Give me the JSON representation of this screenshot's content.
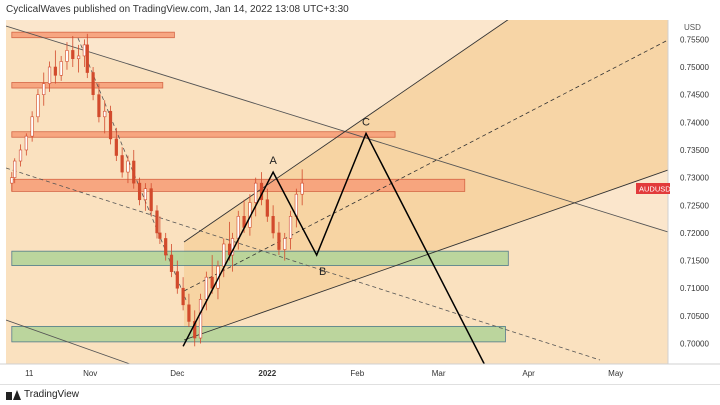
{
  "header": {
    "publisher_line": "CyclicalWaves published on TradingView.com, Jan 14, 2022 13:08 UTC+3:30"
  },
  "footer": {
    "logo_text": "TradingView"
  },
  "colors": {
    "orange_zone": "#f7a07a",
    "green_zone": "#b5d49a",
    "channel_fill": "#f6d3a2",
    "background": "#fbe6cc",
    "candle": "#d24a2c",
    "path": "#000000",
    "price_tag": "#e23b3b"
  },
  "chart_data": {
    "type": "candlestick",
    "symbol": "AUDUSD",
    "currency": "USD",
    "y_ticks": [
      "0.75500",
      "0.75000",
      "0.74500",
      "0.74000",
      "0.73500",
      "0.73000",
      "0.72500",
      "0.72000",
      "0.71500",
      "0.71000",
      "0.70500",
      "0.70000"
    ],
    "x_ticks": [
      "11",
      "Nov",
      "Dec",
      "2022",
      "Feb",
      "Mar",
      "Apr",
      "May"
    ],
    "ylim": [
      0.6963,
      0.7585
    ],
    "current_price_label": "AUDUSD",
    "wave_labels": [
      "A",
      "B",
      "C"
    ],
    "wave_points": [
      {
        "label": "",
        "date": "2021-12-03",
        "price": 0.6995
      },
      {
        "label": "A",
        "date": "2022-01-03",
        "price": 0.731
      },
      {
        "label": "B",
        "date": "2022-01-18",
        "price": 0.716
      },
      {
        "label": "C",
        "date": "2022-02-04",
        "price": 0.738
      },
      {
        "label": "",
        "date": "2022-03-18",
        "price": 0.695
      }
    ],
    "horizontal_zones": [
      {
        "color": "orange",
        "top": 0.7563,
        "bottom": 0.7553,
        "start": "2021-10-05",
        "end": "2021-11-30"
      },
      {
        "color": "orange",
        "top": 0.7472,
        "bottom": 0.7462,
        "start": "2021-10-05",
        "end": "2021-11-26"
      },
      {
        "color": "orange",
        "top": 0.7383,
        "bottom": 0.7373,
        "start": "2021-10-05",
        "end": "2022-02-14"
      },
      {
        "color": "orange",
        "top": 0.7297,
        "bottom": 0.7275,
        "start": "2021-10-05",
        "end": "2022-03-10"
      },
      {
        "color": "green",
        "top": 0.7167,
        "bottom": 0.7141,
        "start": "2021-10-05",
        "end": "2022-03-25"
      },
      {
        "color": "green",
        "top": 0.7031,
        "bottom": 0.7003,
        "start": "2021-10-05",
        "end": "2022-03-24"
      }
    ],
    "candles_ohlc": [
      [
        0.729,
        0.731,
        0.7275,
        0.73
      ],
      [
        0.73,
        0.7335,
        0.729,
        0.733
      ],
      [
        0.733,
        0.736,
        0.732,
        0.735
      ],
      [
        0.735,
        0.738,
        0.734,
        0.7375
      ],
      [
        0.7375,
        0.742,
        0.7365,
        0.741
      ],
      [
        0.741,
        0.746,
        0.74,
        0.745
      ],
      [
        0.745,
        0.749,
        0.743,
        0.747
      ],
      [
        0.747,
        0.751,
        0.7455,
        0.75
      ],
      [
        0.75,
        0.753,
        0.747,
        0.7485
      ],
      [
        0.7485,
        0.752,
        0.7475,
        0.751
      ],
      [
        0.751,
        0.7545,
        0.7495,
        0.753
      ],
      [
        0.753,
        0.7556,
        0.75,
        0.7515
      ],
      [
        0.7515,
        0.754,
        0.749,
        0.752
      ],
      [
        0.752,
        0.755,
        0.75,
        0.754
      ],
      [
        0.754,
        0.756,
        0.748,
        0.749
      ],
      [
        0.749,
        0.75,
        0.744,
        0.745
      ],
      [
        0.745,
        0.747,
        0.74,
        0.741
      ],
      [
        0.741,
        0.744,
        0.738,
        0.742
      ],
      [
        0.742,
        0.743,
        0.736,
        0.737
      ],
      [
        0.737,
        0.739,
        0.733,
        0.734
      ],
      [
        0.734,
        0.7355,
        0.73,
        0.731
      ],
      [
        0.731,
        0.734,
        0.729,
        0.733
      ],
      [
        0.733,
        0.735,
        0.728,
        0.729
      ],
      [
        0.729,
        0.73,
        0.725,
        0.726
      ],
      [
        0.726,
        0.729,
        0.724,
        0.728
      ],
      [
        0.728,
        0.729,
        0.723,
        0.724
      ],
      [
        0.724,
        0.725,
        0.719,
        0.72
      ],
      [
        0.72,
        0.723,
        0.718,
        0.719
      ],
      [
        0.719,
        0.72,
        0.715,
        0.716
      ],
      [
        0.716,
        0.718,
        0.712,
        0.713
      ],
      [
        0.713,
        0.715,
        0.709,
        0.71
      ],
      [
        0.71,
        0.712,
        0.706,
        0.707
      ],
      [
        0.707,
        0.709,
        0.703,
        0.704
      ],
      [
        0.704,
        0.706,
        0.6995,
        0.701
      ],
      [
        0.701,
        0.709,
        0.7,
        0.708
      ],
      [
        0.708,
        0.713,
        0.706,
        0.712
      ],
      [
        0.712,
        0.716,
        0.709,
        0.71
      ],
      [
        0.71,
        0.715,
        0.708,
        0.714
      ],
      [
        0.714,
        0.719,
        0.712,
        0.718
      ],
      [
        0.718,
        0.722,
        0.715,
        0.716
      ],
      [
        0.716,
        0.72,
        0.713,
        0.719
      ],
      [
        0.719,
        0.724,
        0.717,
        0.723
      ],
      [
        0.723,
        0.726,
        0.72,
        0.721
      ],
      [
        0.721,
        0.727,
        0.7195,
        0.7255
      ],
      [
        0.7255,
        0.73,
        0.723,
        0.729
      ],
      [
        0.729,
        0.731,
        0.725,
        0.726
      ],
      [
        0.726,
        0.728,
        0.722,
        0.723
      ],
      [
        0.723,
        0.725,
        0.719,
        0.72
      ],
      [
        0.72,
        0.722,
        0.716,
        0.717
      ],
      [
        0.717,
        0.72,
        0.715,
        0.719
      ],
      [
        0.719,
        0.724,
        0.717,
        0.723
      ],
      [
        0.723,
        0.728,
        0.721,
        0.727
      ],
      [
        0.727,
        0.7315,
        0.725,
        0.729
      ]
    ]
  }
}
